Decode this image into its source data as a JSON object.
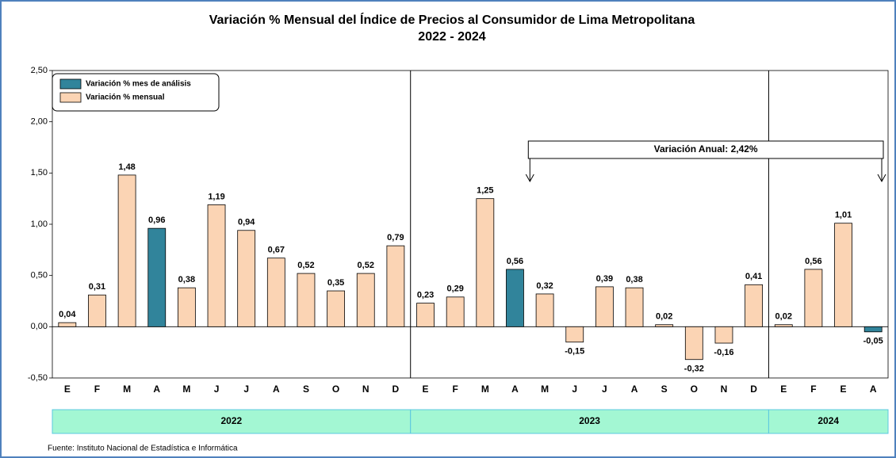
{
  "chart_data": {
    "type": "bar",
    "title": "Variación % Mensual del Índice de Precios al Consumidor de Lima Metropolitana",
    "subtitle": "2022 - 2024",
    "categories": [
      "E",
      "F",
      "M",
      "A",
      "M",
      "J",
      "J",
      "A",
      "S",
      "O",
      "N",
      "D",
      "E",
      "F",
      "M",
      "A",
      "M",
      "J",
      "J",
      "A",
      "S",
      "O",
      "N",
      "D",
      "E",
      "F",
      "E",
      "A"
    ],
    "values": [
      0.04,
      0.31,
      1.48,
      0.96,
      0.38,
      1.19,
      0.94,
      0.67,
      0.52,
      0.35,
      0.52,
      0.79,
      0.23,
      0.29,
      1.25,
      0.56,
      0.32,
      -0.15,
      0.39,
      0.38,
      0.02,
      -0.32,
      -0.16,
      0.41,
      0.02,
      0.56,
      1.01,
      -0.05
    ],
    "value_labels": [
      "0,04",
      "0,31",
      "1,48",
      "0,96",
      "0,38",
      "1,19",
      "0,94",
      "0,67",
      "0,52",
      "0,35",
      "0,52",
      "0,79",
      "0,23",
      "0,29",
      "1,25",
      "0,56",
      "0,32",
      "-0,15",
      "0,39",
      "0,38",
      "0,02",
      "-0,32",
      "-0,16",
      "0,41",
      "0,02",
      "0,56",
      "1,01",
      "-0,05"
    ],
    "colors": [
      "#fbd4b4",
      "#fbd4b4",
      "#fbd4b4",
      "#31849b",
      "#fbd4b4",
      "#fbd4b4",
      "#fbd4b4",
      "#fbd4b4",
      "#fbd4b4",
      "#fbd4b4",
      "#fbd4b4",
      "#fbd4b4",
      "#fbd4b4",
      "#fbd4b4",
      "#fbd4b4",
      "#31849b",
      "#fbd4b4",
      "#fbd4b4",
      "#fbd4b4",
      "#fbd4b4",
      "#fbd4b4",
      "#fbd4b4",
      "#fbd4b4",
      "#fbd4b4",
      "#fbd4b4",
      "#fbd4b4",
      "#fbd4b4",
      "#31849b"
    ],
    "legend": [
      {
        "name": "Variación % mes de análisis",
        "color": "#31849b"
      },
      {
        "name": "Variación % mensual",
        "color": "#fbd4b4"
      }
    ],
    "ylim": [
      -0.5,
      2.5
    ],
    "yticks": [
      {
        "value": -0.5,
        "label": "-0,50"
      },
      {
        "value": 0,
        "label": "0,00"
      },
      {
        "value": 0.5,
        "label": "0,50"
      },
      {
        "value": 1,
        "label": "1,00"
      },
      {
        "value": 1.5,
        "label": "1,50"
      },
      {
        "value": 2,
        "label": "2,00"
      },
      {
        "value": 2.5,
        "label": "2,50"
      }
    ],
    "year_groups": [
      {
        "label": "2022",
        "count": 12
      },
      {
        "label": "2023",
        "count": 12
      },
      {
        "label": "2024",
        "count": 4
      }
    ],
    "annotation": "Variación Anual: 2,42%",
    "source": "Fuente: Instituto Nacional de Estadística e Informática"
  }
}
